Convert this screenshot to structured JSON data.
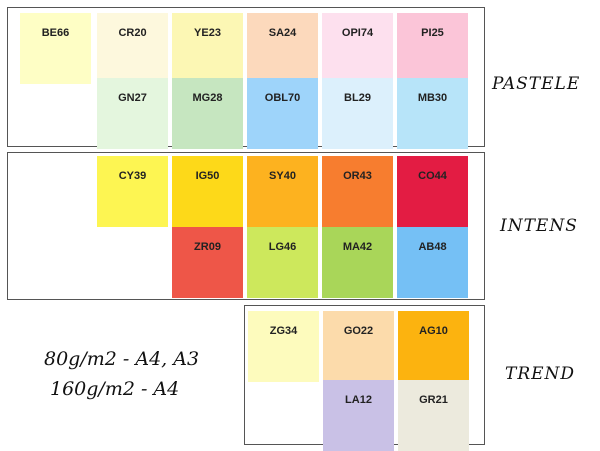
{
  "groups": [
    {
      "title": "PASTELE",
      "rows": [
        [
          {
            "code": "BE66",
            "color": "#fefec5"
          },
          {
            "code": "CR20",
            "color": "#fdf8dd"
          },
          {
            "code": "YE23",
            "color": "#fcf7b4"
          },
          {
            "code": "SA24",
            "color": "#fcd9bc"
          },
          {
            "code": "OPI74",
            "color": "#fde0ee"
          },
          {
            "code": "PI25",
            "color": "#fbc5d8"
          }
        ],
        [
          {
            "code": "GN27",
            "color": "#e4f6de"
          },
          {
            "code": "MG28",
            "color": "#c6e6c0"
          },
          {
            "code": "OBL70",
            "color": "#9ed4fa"
          },
          {
            "code": "BL29",
            "color": "#dcf0fc"
          },
          {
            "code": "MB30",
            "color": "#b7e4f9"
          }
        ]
      ]
    },
    {
      "title": "INTENS",
      "rows": [
        [
          {
            "code": "CY39",
            "color": "#fdf552"
          },
          {
            "code": "IG50",
            "color": "#fdd919"
          },
          {
            "code": "SY40",
            "color": "#fdb21f"
          },
          {
            "code": "OR43",
            "color": "#f77d2f"
          },
          {
            "code": "CO44",
            "color": "#e31c43"
          }
        ],
        [
          {
            "code": "ZR09",
            "color": "#ee5648"
          },
          {
            "code": "LG46",
            "color": "#cde85c"
          },
          {
            "code": "MA42",
            "color": "#a9d659"
          },
          {
            "code": "AB48",
            "color": "#75c0f5"
          }
        ]
      ]
    },
    {
      "title": "TREND",
      "rows": [
        [
          {
            "code": "ZG34",
            "color": "#fdfbbd"
          },
          {
            "code": "GO22",
            "color": "#fcdbab"
          },
          {
            "code": "AG10",
            "color": "#fcb30f"
          }
        ],
        [
          {
            "code": "LA12",
            "color": "#c9c1e6"
          },
          {
            "code": "GR21",
            "color": "#eceadd"
          }
        ]
      ]
    }
  ],
  "weights": [
    "80g/m2 - A4, A3",
    "160g/m2 - A4"
  ]
}
